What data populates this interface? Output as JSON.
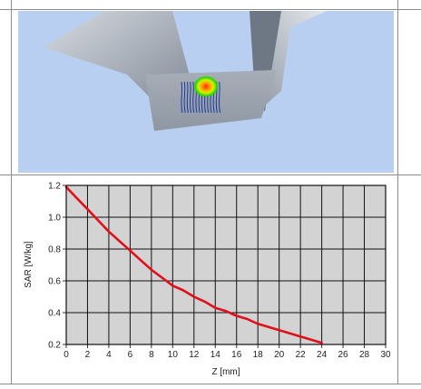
{
  "chart_data": {
    "type": "line",
    "title": "",
    "xlabel": "Z [mm]",
    "ylabel": "SAR [W/kg]",
    "xlim": [
      0,
      30
    ],
    "ylim": [
      0.2,
      1.2
    ],
    "xticks": [
      0,
      2,
      4,
      6,
      8,
      10,
      12,
      14,
      16,
      18,
      20,
      22,
      24,
      26,
      28,
      30
    ],
    "yticks": [
      0.2,
      0.4,
      0.6,
      0.8,
      1.0,
      1.2
    ],
    "xtick_labels": [
      "0",
      "2",
      "4",
      "6",
      "8",
      "10",
      "12",
      "14",
      "16",
      "18",
      "20",
      "22",
      "24",
      "26",
      "28",
      "30"
    ],
    "ytick_labels": [
      "0.2",
      "0.4",
      "0.6",
      "0.8",
      "1.0",
      "1.2"
    ],
    "grid": true,
    "series": [
      {
        "color": "#e0101a",
        "x": [
          0,
          1,
          2,
          3,
          4,
          5,
          6,
          7,
          8,
          9,
          10,
          11,
          12,
          13,
          14,
          15,
          16,
          17,
          18,
          19,
          20,
          21,
          22,
          23,
          24
        ],
        "y": [
          1.19,
          1.12,
          1.05,
          0.98,
          0.91,
          0.85,
          0.79,
          0.73,
          0.67,
          0.62,
          0.57,
          0.54,
          0.5,
          0.47,
          0.43,
          0.41,
          0.38,
          0.36,
          0.33,
          0.31,
          0.29,
          0.27,
          0.25,
          0.23,
          0.21
        ]
      }
    ]
  },
  "scene": {
    "background": "#b9cff2",
    "phantom_color": "#9ea6b2",
    "scan_line_color": "#1a3a9c",
    "hotspot_colors": [
      "#ff2a00",
      "#ffd400",
      "#22d900"
    ]
  }
}
